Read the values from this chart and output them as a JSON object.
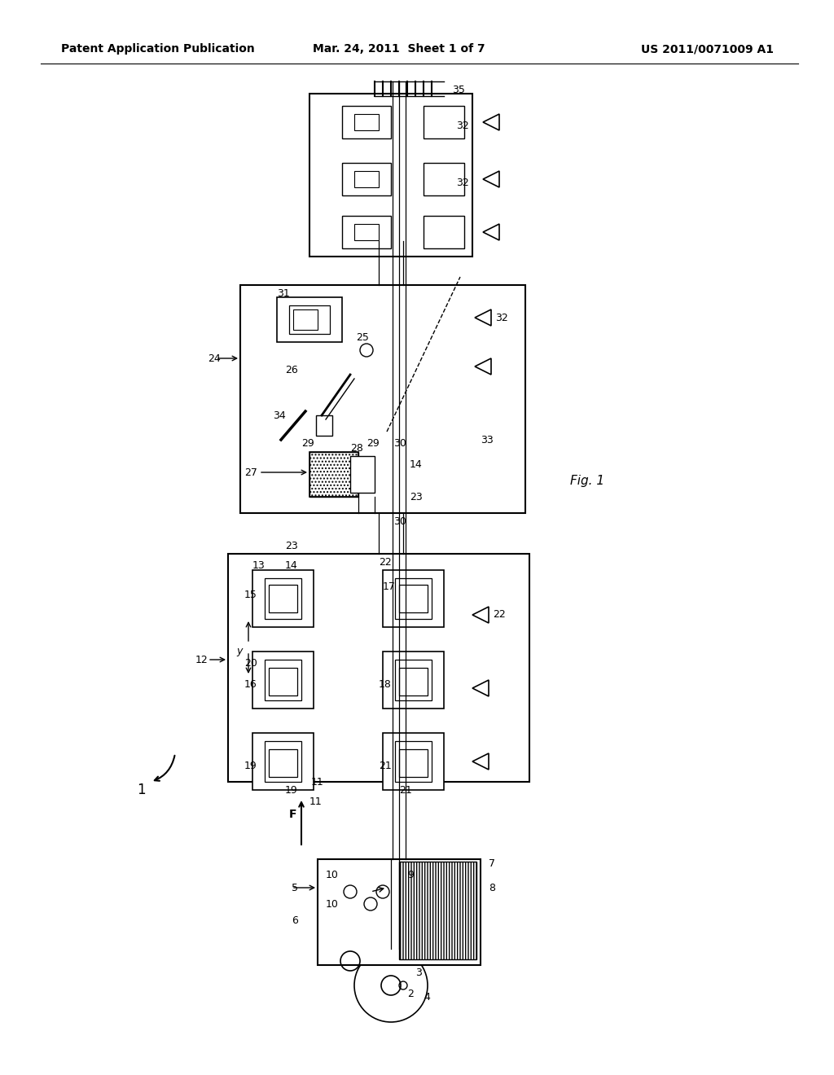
{
  "bg_color": "#ffffff",
  "title_left": "Patent Application Publication",
  "title_mid": "Mar. 24, 2011  Sheet 1 of 7",
  "title_right": "US 2011/0071009 A1",
  "fig_label": "Fig. 1",
  "label_1": "1",
  "label_F": "F"
}
